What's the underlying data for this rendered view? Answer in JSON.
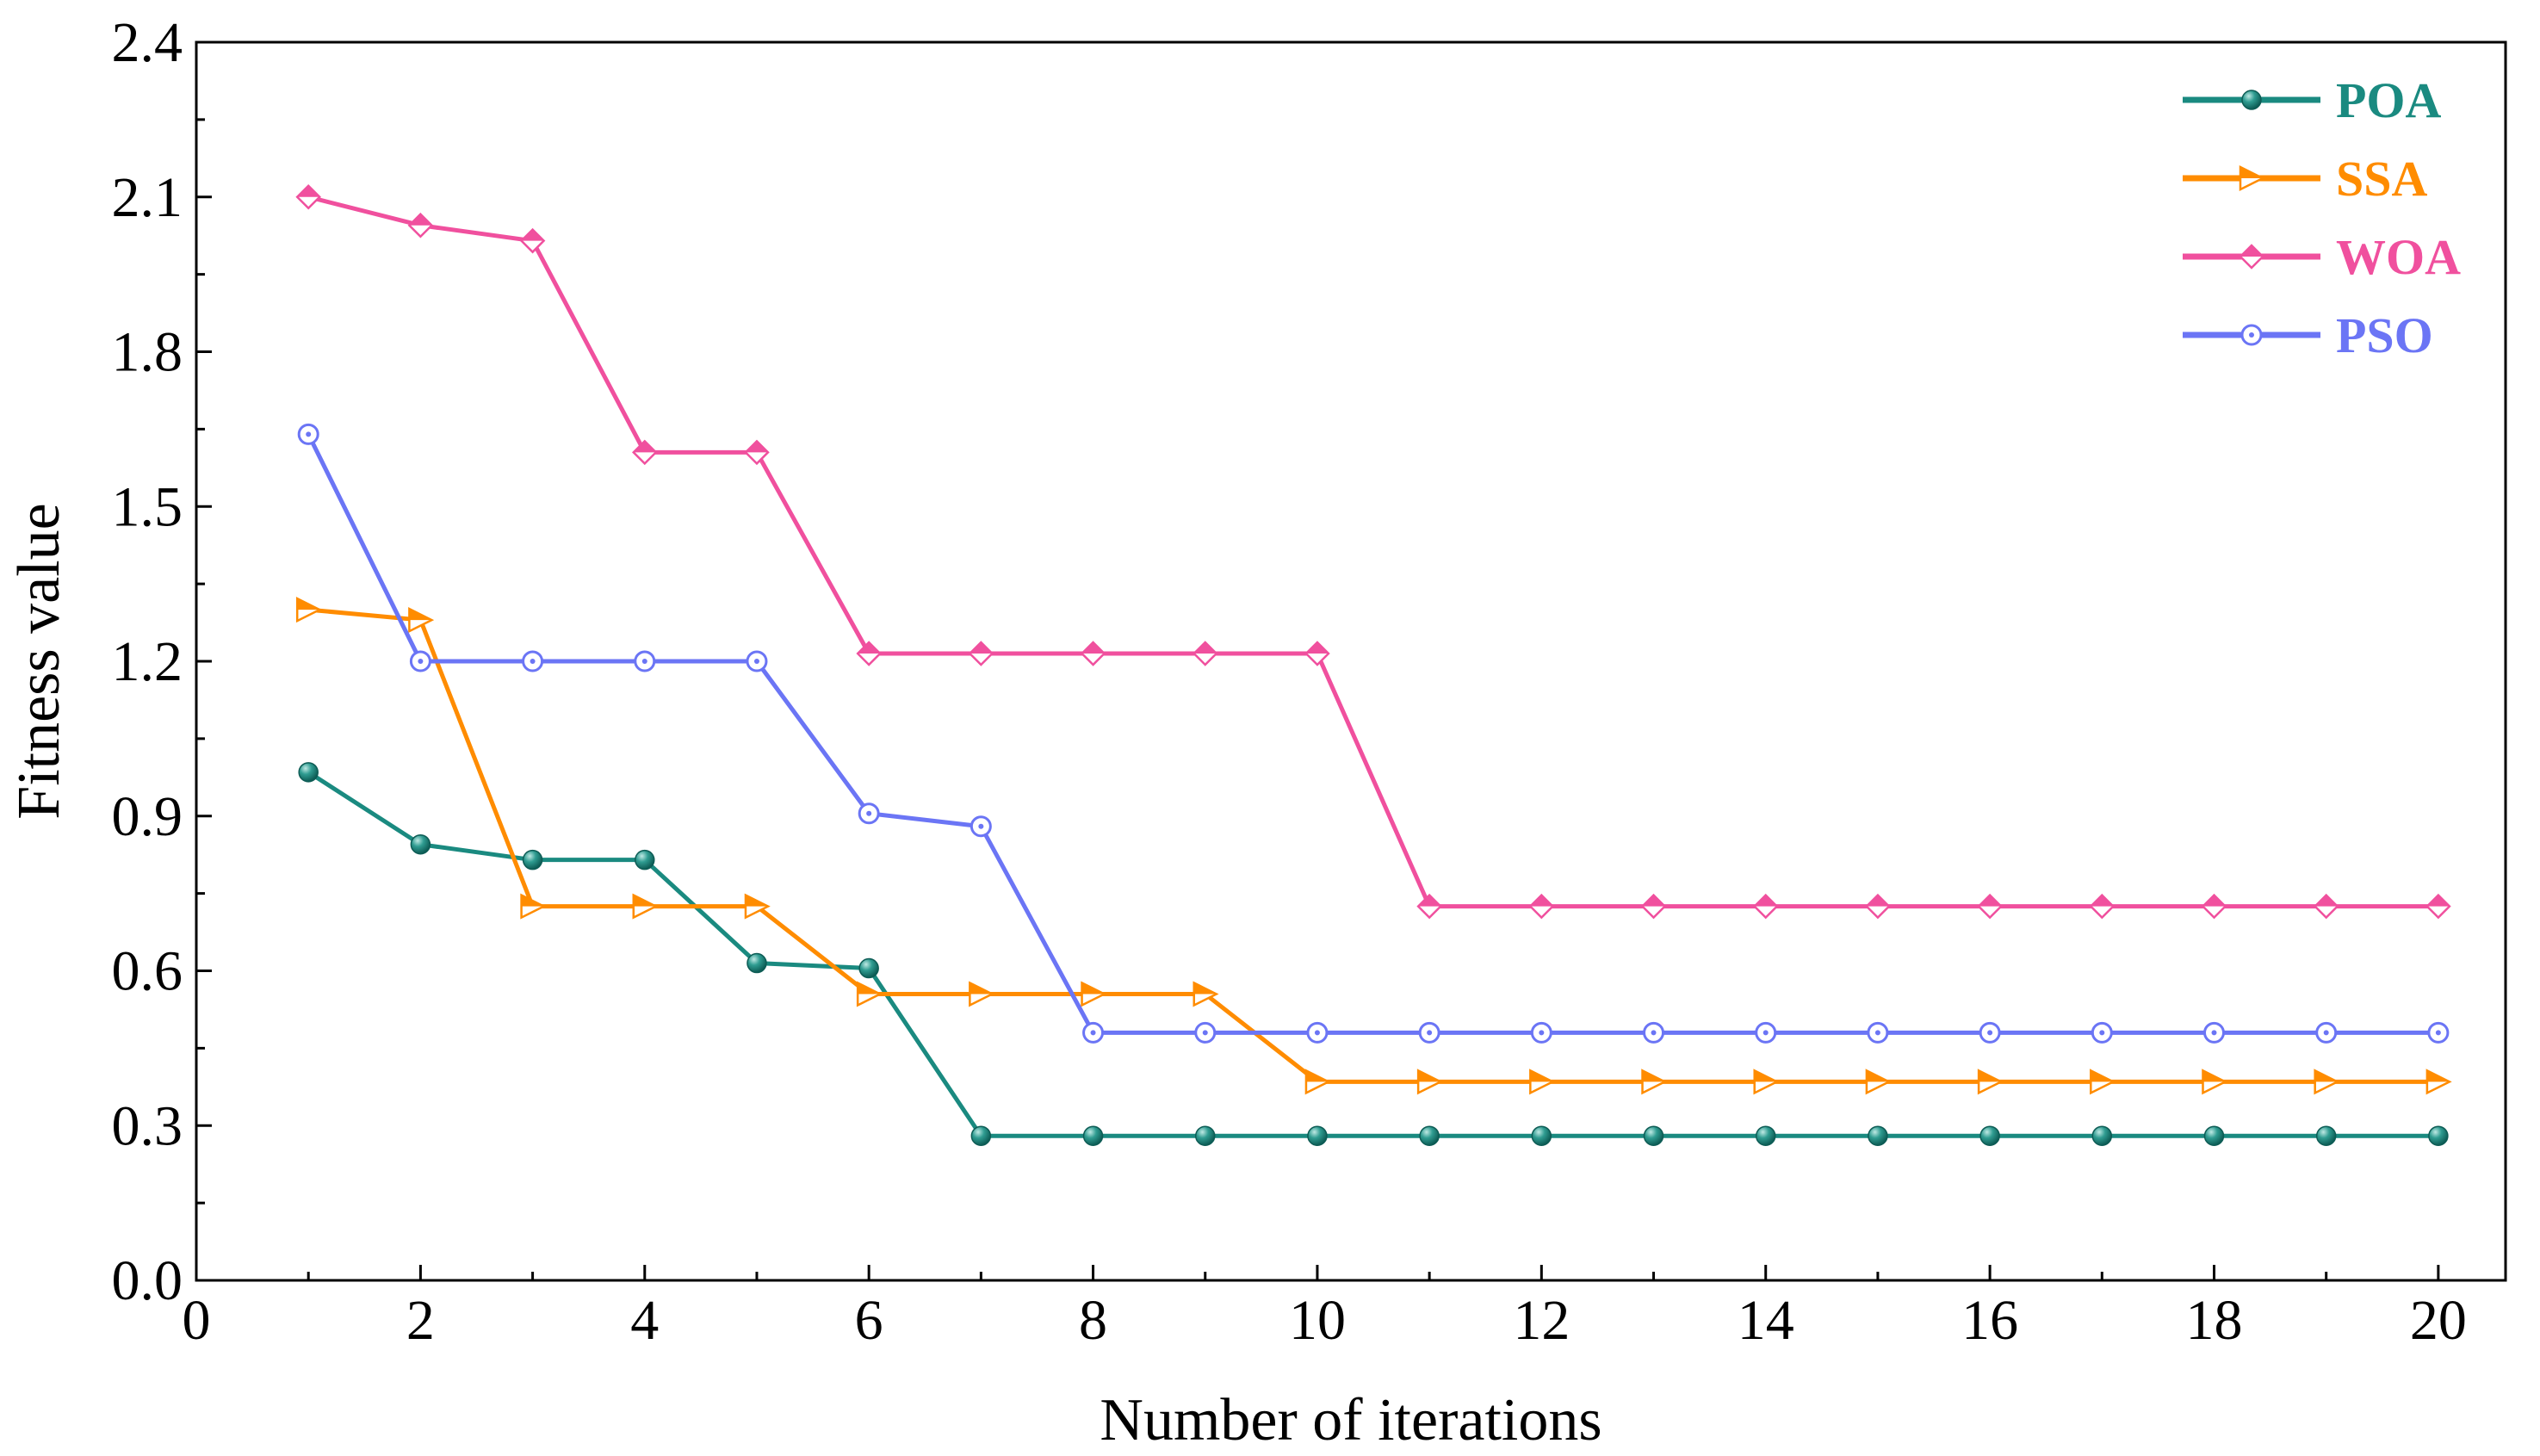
{
  "chart_data": {
    "type": "line",
    "title": "",
    "xlabel": "Number of iterations",
    "ylabel": "Fitness value",
    "xlim": [
      0,
      20.6
    ],
    "ylim": [
      0,
      2.4
    ],
    "xticks": [
      0,
      2,
      4,
      6,
      8,
      10,
      12,
      14,
      16,
      18,
      20
    ],
    "xtick_labels": [
      "0",
      "2",
      "4",
      "6",
      "8",
      "10",
      "12",
      "14",
      "16",
      "18",
      "20"
    ],
    "yticks": [
      0,
      0.3,
      0.6,
      0.9,
      1.2,
      1.5,
      1.8,
      2.1,
      2.4
    ],
    "ytick_labels": [
      "0.0",
      "0.3",
      "0.6",
      "0.9",
      "1.2",
      "1.5",
      "1.8",
      "2.1",
      "2.4"
    ],
    "grid": false,
    "legend_position": "top-right",
    "x": [
      1,
      2,
      3,
      4,
      5,
      6,
      7,
      8,
      9,
      10,
      11,
      12,
      13,
      14,
      15,
      16,
      17,
      18,
      19,
      20
    ],
    "series": [
      {
        "name": "POA",
        "color": "#1a8a80",
        "marker": "filled-circle",
        "values": [
          0.985,
          0.845,
          0.815,
          0.815,
          0.615,
          0.605,
          0.28,
          0.28,
          0.28,
          0.28,
          0.28,
          0.28,
          0.28,
          0.28,
          0.28,
          0.28,
          0.28,
          0.28,
          0.28,
          0.28
        ]
      },
      {
        "name": "SSA",
        "color": "#ff8c00",
        "marker": "triangle-right",
        "values": [
          1.3,
          1.28,
          0.725,
          0.725,
          0.725,
          0.555,
          0.555,
          0.555,
          0.555,
          0.385,
          0.385,
          0.385,
          0.385,
          0.385,
          0.385,
          0.385,
          0.385,
          0.385,
          0.385,
          0.385
        ]
      },
      {
        "name": "WOA",
        "color": "#f0509e",
        "marker": "diamond",
        "values": [
          2.1,
          2.045,
          2.015,
          1.605,
          1.605,
          1.215,
          1.215,
          1.215,
          1.215,
          1.215,
          0.725,
          0.725,
          0.725,
          0.725,
          0.725,
          0.725,
          0.725,
          0.725,
          0.725,
          0.725
        ]
      },
      {
        "name": "PSO",
        "color": "#6b75f5",
        "marker": "open-circle",
        "values": [
          1.64,
          1.2,
          1.2,
          1.2,
          1.2,
          0.905,
          0.88,
          0.48,
          0.48,
          0.48,
          0.48,
          0.48,
          0.48,
          0.48,
          0.48,
          0.48,
          0.48,
          0.48,
          0.48,
          0.48
        ]
      }
    ]
  }
}
